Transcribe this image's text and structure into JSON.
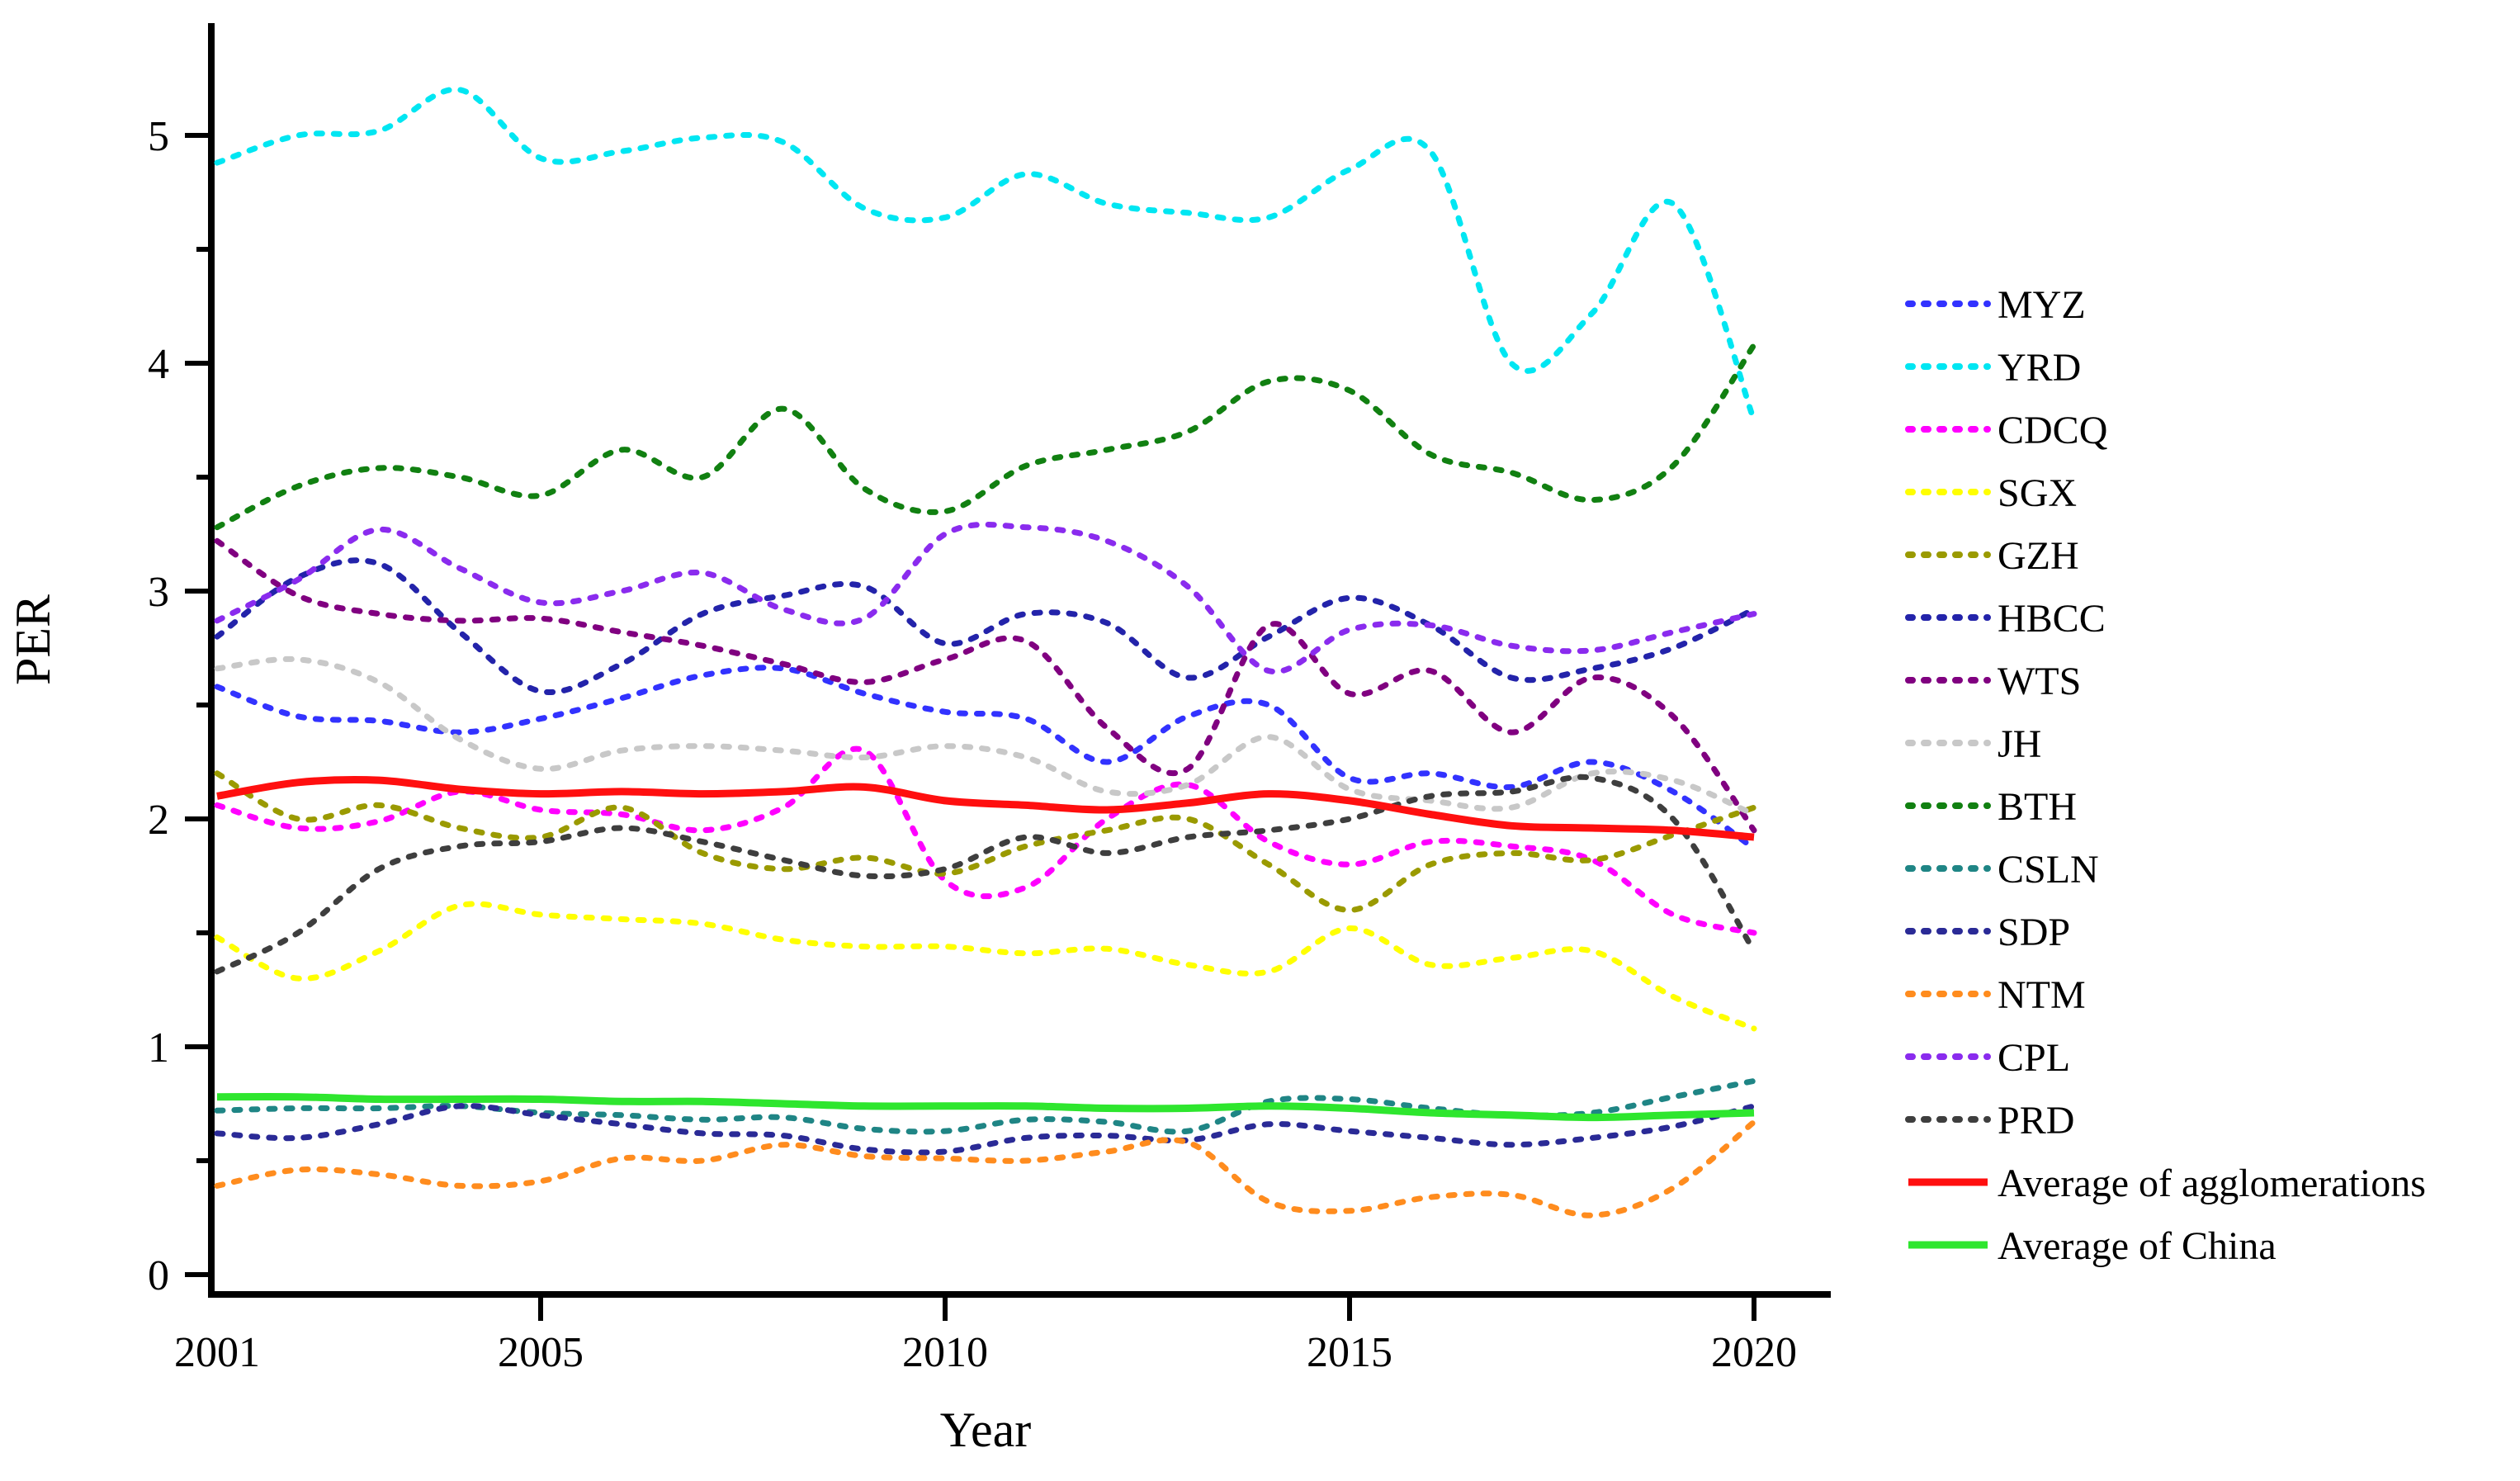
{
  "chart_data": {
    "type": "line",
    "title": "",
    "xlabel": "Year",
    "ylabel": "PER",
    "x": [
      2001,
      2002,
      2003,
      2004,
      2005,
      2006,
      2007,
      2008,
      2009,
      2010,
      2011,
      2012,
      2013,
      2014,
      2015,
      2016,
      2017,
      2018,
      2019,
      2020
    ],
    "xticks": [
      2001,
      2005,
      2010,
      2015,
      2020
    ],
    "yticks": [
      0,
      1,
      2,
      3,
      4,
      5
    ],
    "xlim": [
      2001,
      2020
    ],
    "ylim": [
      0,
      5.45
    ],
    "grid": false,
    "legend_position": "right",
    "series": [
      {
        "name": "MYZ",
        "color": "#3232ff",
        "style": "dashed",
        "values": [
          2.58,
          2.45,
          2.43,
          2.38,
          2.44,
          2.53,
          2.63,
          2.66,
          2.55,
          2.47,
          2.44,
          2.25,
          2.45,
          2.5,
          2.18,
          2.2,
          2.14,
          2.25,
          2.12,
          1.87
        ]
      },
      {
        "name": "YRD",
        "color": "#00e6f2",
        "style": "dashed",
        "values": [
          4.88,
          5.0,
          5.02,
          5.2,
          4.9,
          4.93,
          4.99,
          4.97,
          4.68,
          4.64,
          4.83,
          4.7,
          4.66,
          4.64,
          4.85,
          4.93,
          4.0,
          4.22,
          4.7,
          3.75
        ]
      },
      {
        "name": "CDCQ",
        "color": "#ff00ff",
        "style": "dashed",
        "values": [
          2.06,
          1.96,
          1.99,
          2.12,
          2.04,
          2.02,
          1.95,
          2.05,
          2.3,
          1.73,
          1.7,
          2.0,
          2.15,
          1.9,
          1.8,
          1.9,
          1.88,
          1.82,
          1.58,
          1.5
        ]
      },
      {
        "name": "SGX",
        "color": "#ffff00",
        "style": "dashed",
        "values": [
          1.48,
          1.3,
          1.42,
          1.62,
          1.58,
          1.56,
          1.54,
          1.47,
          1.44,
          1.44,
          1.41,
          1.43,
          1.36,
          1.33,
          1.52,
          1.36,
          1.39,
          1.42,
          1.22,
          1.08
        ]
      },
      {
        "name": "GZH",
        "color": "#9a9a00",
        "style": "dashed",
        "values": [
          2.2,
          2.0,
          2.06,
          1.96,
          1.92,
          2.05,
          1.85,
          1.78,
          1.83,
          1.76,
          1.88,
          1.95,
          2.0,
          1.8,
          1.6,
          1.8,
          1.85,
          1.82,
          1.93,
          2.05
        ]
      },
      {
        "name": "HBCC",
        "color": "#2323aa",
        "style": "dashed",
        "values": [
          2.8,
          3.06,
          3.12,
          2.82,
          2.56,
          2.68,
          2.9,
          2.98,
          3.02,
          2.77,
          2.9,
          2.86,
          2.62,
          2.8,
          2.97,
          2.85,
          2.62,
          2.66,
          2.75,
          2.92
        ]
      },
      {
        "name": "WTS",
        "color": "#800080",
        "style": "dashed",
        "values": [
          3.22,
          2.98,
          2.9,
          2.87,
          2.88,
          2.82,
          2.76,
          2.68,
          2.6,
          2.7,
          2.78,
          2.4,
          2.22,
          2.85,
          2.55,
          2.65,
          2.38,
          2.62,
          2.45,
          1.95
        ]
      },
      {
        "name": "JH",
        "color": "#c8c8c8",
        "style": "dashed",
        "values": [
          2.66,
          2.7,
          2.6,
          2.35,
          2.22,
          2.3,
          2.32,
          2.3,
          2.27,
          2.32,
          2.27,
          2.12,
          2.15,
          2.36,
          2.13,
          2.08,
          2.05,
          2.2,
          2.17,
          2.02
        ]
      },
      {
        "name": "BTH",
        "color": "#118011",
        "style": "dashed",
        "values": [
          3.28,
          3.46,
          3.54,
          3.5,
          3.42,
          3.62,
          3.5,
          3.8,
          3.45,
          3.35,
          3.55,
          3.62,
          3.7,
          3.92,
          3.88,
          3.6,
          3.52,
          3.4,
          3.55,
          4.08
        ]
      },
      {
        "name": "CSLN",
        "color": "#1f8585",
        "style": "dashed",
        "values": [
          0.72,
          0.73,
          0.73,
          0.74,
          0.71,
          0.7,
          0.68,
          0.69,
          0.64,
          0.63,
          0.68,
          0.67,
          0.63,
          0.76,
          0.77,
          0.73,
          0.7,
          0.71,
          0.78,
          0.85
        ]
      },
      {
        "name": "SDP",
        "color": "#2a2a96",
        "style": "dashed",
        "values": [
          0.62,
          0.6,
          0.66,
          0.74,
          0.7,
          0.66,
          0.62,
          0.61,
          0.55,
          0.54,
          0.6,
          0.61,
          0.59,
          0.66,
          0.63,
          0.6,
          0.57,
          0.6,
          0.65,
          0.74
        ]
      },
      {
        "name": "NTM",
        "color": "#ff8c1e",
        "style": "dashed",
        "values": [
          0.39,
          0.46,
          0.44,
          0.39,
          0.41,
          0.51,
          0.5,
          0.57,
          0.52,
          0.51,
          0.5,
          0.54,
          0.58,
          0.32,
          0.28,
          0.34,
          0.35,
          0.26,
          0.38,
          0.67
        ]
      },
      {
        "name": "CPL",
        "color": "#8a2bee",
        "style": "dashed",
        "values": [
          2.87,
          3.05,
          3.27,
          3.1,
          2.95,
          3.0,
          3.08,
          2.92,
          2.88,
          3.25,
          3.28,
          3.22,
          3.02,
          2.65,
          2.83,
          2.85,
          2.76,
          2.74,
          2.82,
          2.9
        ]
      },
      {
        "name": "PRD",
        "color": "#3e3e3e",
        "style": "dashed",
        "values": [
          1.33,
          1.5,
          1.78,
          1.88,
          1.9,
          1.96,
          1.9,
          1.82,
          1.75,
          1.78,
          1.92,
          1.85,
          1.92,
          1.95,
          2.0,
          2.1,
          2.12,
          2.18,
          2.0,
          1.42
        ]
      },
      {
        "name": "Average of agglomerations",
        "color": "#ff0f0f",
        "style": "solid",
        "values": [
          2.1,
          2.16,
          2.17,
          2.13,
          2.11,
          2.12,
          2.11,
          2.12,
          2.14,
          2.08,
          2.06,
          2.04,
          2.07,
          2.11,
          2.08,
          2.02,
          1.97,
          1.96,
          1.95,
          1.92
        ]
      },
      {
        "name": "Average of China",
        "color": "#2ee62e",
        "style": "solid",
        "values": [
          0.78,
          0.78,
          0.77,
          0.77,
          0.77,
          0.76,
          0.76,
          0.75,
          0.74,
          0.74,
          0.74,
          0.73,
          0.73,
          0.74,
          0.73,
          0.71,
          0.7,
          0.69,
          0.7,
          0.71
        ]
      }
    ]
  },
  "legend": {
    "items": [
      "MYZ",
      "YRD",
      "CDCQ",
      "SGX",
      "GZH",
      "HBCC",
      "WTS",
      "JH",
      "BTH",
      "CSLN",
      "SDP",
      "NTM",
      "CPL",
      "PRD",
      "Average of agglomerations",
      "Average of China"
    ]
  },
  "axes": {
    "x_label": "Year",
    "y_label": "PER",
    "x_tick_labels": [
      "2001",
      "2005",
      "2010",
      "2015",
      "2020"
    ],
    "y_tick_labels": [
      "0",
      "1",
      "2",
      "3",
      "4",
      "5"
    ]
  }
}
